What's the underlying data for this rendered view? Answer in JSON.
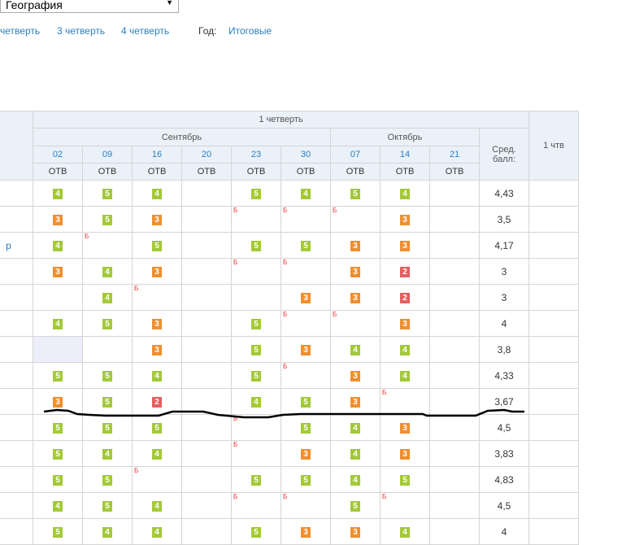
{
  "subject_select": {
    "value": "География"
  },
  "period_tabs": [
    {
      "label": "четверть"
    },
    {
      "label": "3 четверть"
    },
    {
      "label": "4 четверть"
    }
  ],
  "year_label": "Год:",
  "final_link": "Итоговые",
  "table": {
    "quarter_title": "1 четверть",
    "quarter_col": "1 чтв",
    "months": [
      {
        "label": "Сентябрь"
      },
      {
        "label": "Октябрь"
      }
    ],
    "dates": [
      "02",
      "09",
      "16",
      "20",
      "23",
      "30",
      "07",
      "14",
      "21"
    ],
    "types": [
      "ОТВ",
      "ОТВ",
      "ОТВ",
      "ОТВ",
      "ОТВ",
      "ОТВ",
      "ОТВ",
      "ОТВ",
      "ОТВ"
    ],
    "avg_header": "Сред. балл:",
    "absent_mark": "Б",
    "rows": [
      {
        "name": "",
        "cells": [
          "4",
          "5",
          "4",
          "",
          "5",
          "4",
          "5",
          "4",
          ""
        ],
        "absent": [],
        "avg": "4,43"
      },
      {
        "name": "",
        "cells": [
          "3",
          "5",
          "3",
          "",
          "",
          "",
          "",
          "3",
          ""
        ],
        "absent": [
          4,
          5,
          6
        ],
        "avg": "3,5"
      },
      {
        "name": "р",
        "cells": [
          "4",
          "",
          "5",
          "",
          "5",
          "5",
          "3",
          "3",
          ""
        ],
        "absent": [
          1
        ],
        "avg": "4,17"
      },
      {
        "name": "",
        "cells": [
          "3",
          "4",
          "3",
          "",
          "",
          "",
          "3",
          "2",
          ""
        ],
        "absent": [
          4,
          5
        ],
        "avg": "3"
      },
      {
        "name": "",
        "cells": [
          "",
          "4",
          "",
          "",
          "",
          "3",
          "3",
          "2",
          ""
        ],
        "absent": [
          2
        ],
        "avg": "3"
      },
      {
        "name": "",
        "cells": [
          "4",
          "5",
          "3",
          "",
          "5",
          "",
          "",
          "3",
          ""
        ],
        "absent": [
          5,
          6
        ],
        "avg": "4",
        "sep": true
      },
      {
        "name": "",
        "cells": [
          "",
          "",
          "3",
          "",
          "5",
          "3",
          "4",
          "4",
          ""
        ],
        "absent": [],
        "avg": "3,8",
        "selected": 0
      },
      {
        "name": "",
        "cells": [
          "5",
          "5",
          "4",
          "",
          "5",
          "",
          "3",
          "4",
          ""
        ],
        "absent": [
          5
        ],
        "avg": "4,33"
      },
      {
        "name": "",
        "cells": [
          "3",
          "5",
          "2",
          "",
          "4",
          "5",
          "3",
          "",
          ""
        ],
        "absent": [
          7
        ],
        "avg": "3,67"
      },
      {
        "name": "",
        "cells": [
          "5",
          "5",
          "5",
          "",
          "",
          "5",
          "4",
          "3",
          ""
        ],
        "absent": [
          4
        ],
        "avg": "4,5"
      },
      {
        "name": "",
        "cells": [
          "5",
          "4",
          "4",
          "",
          "",
          "3",
          "4",
          "3",
          ""
        ],
        "absent": [
          4
        ],
        "avg": "3,83",
        "sep": true
      },
      {
        "name": "",
        "cells": [
          "5",
          "5",
          "",
          "",
          "5",
          "5",
          "4",
          "5",
          ""
        ],
        "absent": [
          2
        ],
        "avg": "4,83"
      },
      {
        "name": "",
        "cells": [
          "4",
          "5",
          "4",
          "",
          "",
          "",
          "5",
          "",
          ""
        ],
        "absent": [
          4,
          5,
          7
        ],
        "avg": "4,5"
      },
      {
        "name": "",
        "cells": [
          "5",
          "4",
          "4",
          "",
          "5",
          "3",
          "3",
          "4",
          ""
        ],
        "absent": [],
        "avg": "4"
      }
    ]
  },
  "colors": {
    "link": "#2a7fc1",
    "header_bg": "#eaf1f8",
    "grade_good": "#a3c939",
    "grade_mid": "#ef8f2f",
    "grade_bad": "#e35f5f",
    "absent": "#e33"
  }
}
